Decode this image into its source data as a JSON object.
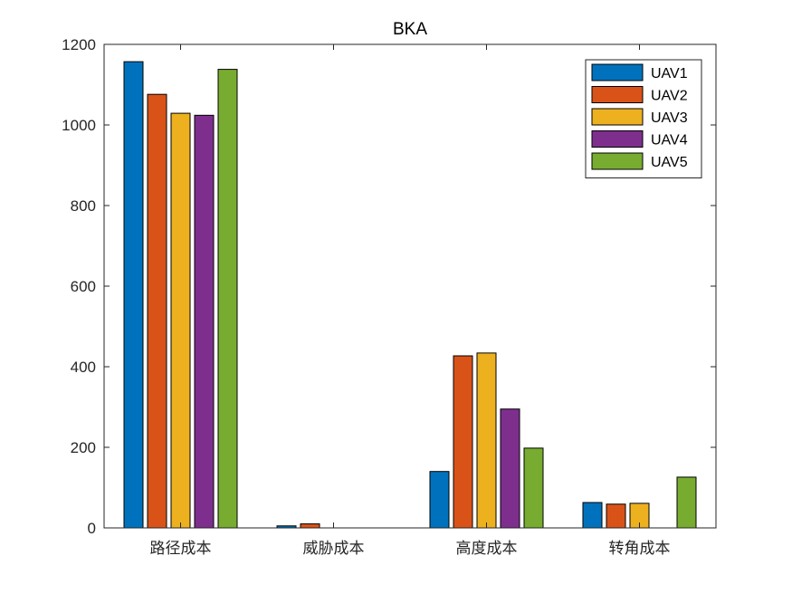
{
  "chart_data": {
    "type": "bar",
    "title": "BKA",
    "xlabel": "",
    "ylabel": "",
    "ylim": [
      0,
      1200
    ],
    "yticks": [
      0,
      200,
      400,
      600,
      800,
      1000,
      1200
    ],
    "categories": [
      "路径成本",
      "威胁成本",
      "高度成本",
      "转角成本"
    ],
    "series": [
      {
        "name": "UAV1",
        "color": "#0072BD",
        "values": [
          1157,
          5,
          140,
          63
        ]
      },
      {
        "name": "UAV2",
        "color": "#D95319",
        "values": [
          1076,
          10,
          427,
          59
        ]
      },
      {
        "name": "UAV3",
        "color": "#EDB120",
        "values": [
          1029,
          0,
          434,
          61
        ]
      },
      {
        "name": "UAV4",
        "color": "#7E2F8E",
        "values": [
          1024,
          0,
          295,
          0
        ]
      },
      {
        "name": "UAV5",
        "color": "#77AC30",
        "values": [
          1138,
          0,
          198,
          126
        ]
      }
    ],
    "legend_position": "top-right",
    "grid": false
  }
}
